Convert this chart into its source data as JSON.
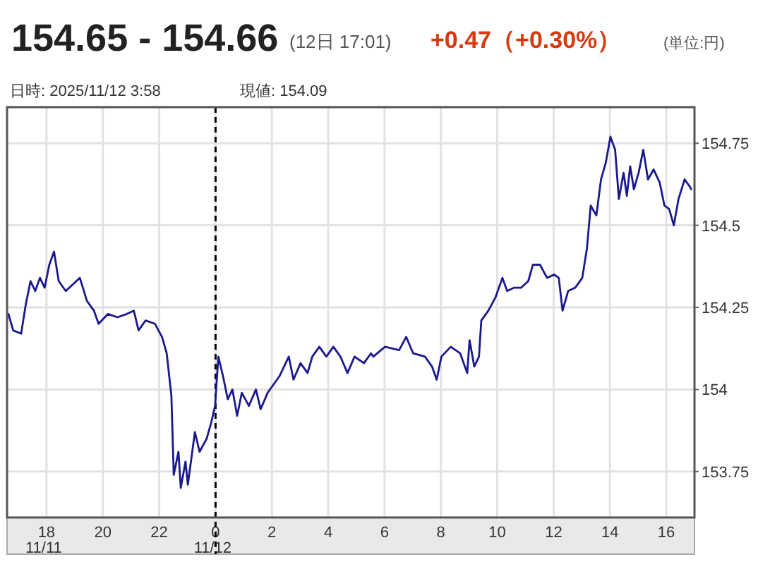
{
  "chart_data": {
    "type": "line",
    "title": "154.65 - 154.66",
    "subtitle": "(12日 17:01)",
    "annotations": [
      "+0.47（+0.30%）",
      "(単位:円)",
      "日時: 2025/11/12  3:58",
      "現値: 154.09"
    ],
    "x": [
      "2025-11-11T16:39",
      "2025-11-11T16:49",
      "2025-11-11T17:06",
      "2025-11-11T17:16",
      "2025-11-11T17:26",
      "2025-11-11T17:36",
      "2025-11-11T17:46",
      "2025-11-11T17:56",
      "2025-11-11T18:06",
      "2025-11-11T18:16",
      "2025-11-11T18:26",
      "2025-11-11T18:41",
      "2025-11-11T18:56",
      "2025-11-11T19:11",
      "2025-11-11T19:26",
      "2025-11-11T19:41",
      "2025-11-11T19:51",
      "2025-11-11T20:11",
      "2025-11-11T20:31",
      "2025-11-11T20:51",
      "2025-11-11T21:06",
      "2025-11-11T21:16",
      "2025-11-11T21:31",
      "2025-11-11T21:51",
      "2025-11-11T22:06",
      "2025-11-11T22:16",
      "2025-11-11T22:26",
      "2025-11-11T22:31",
      "2025-11-11T22:41",
      "2025-11-11T22:46",
      "2025-11-11T22:56",
      "2025-11-11T23:01",
      "2025-11-11T23:16",
      "2025-11-11T23:26",
      "2025-11-11T23:41",
      "2025-11-11T23:51",
      "2025-11-11T23:59",
      "2025-11-12T00:06",
      "2025-11-12T00:16",
      "2025-11-12T00:26",
      "2025-11-12T00:36",
      "2025-11-12T00:46",
      "2025-11-12T00:56",
      "2025-11-12T01:11",
      "2025-11-12T01:26",
      "2025-11-12T01:36",
      "2025-11-12T01:51",
      "2025-11-12T02:01",
      "2025-11-12T02:16",
      "2025-11-12T02:36",
      "2025-11-12T02:46",
      "2025-11-12T03:01",
      "2025-11-12T03:16",
      "2025-11-12T03:26",
      "2025-11-12T03:41",
      "2025-11-12T03:56",
      "2025-11-12T04:11",
      "2025-11-12T04:26",
      "2025-11-12T04:41",
      "2025-11-12T04:56",
      "2025-11-12T05:16",
      "2025-11-12T05:31",
      "2025-11-12T05:36",
      "2025-11-12T06:01",
      "2025-11-12T06:31",
      "2025-11-12T06:46",
      "2025-11-12T07:01",
      "2025-11-12T07:26",
      "2025-11-12T07:41",
      "2025-11-12T07:51",
      "2025-11-12T08:01",
      "2025-11-12T08:21",
      "2025-11-12T08:41",
      "2025-11-12T08:56",
      "2025-11-12T09:01",
      "2025-11-12T09:11",
      "2025-11-12T09:21",
      "2025-11-12T09:26",
      "2025-11-12T09:41",
      "2025-11-12T09:56",
      "2025-11-12T10:11",
      "2025-11-12T10:21",
      "2025-11-12T10:36",
      "2025-11-12T10:51",
      "2025-11-12T11:06",
      "2025-11-12T11:16",
      "2025-11-12T11:31",
      "2025-11-12T11:46",
      "2025-11-12T12:01",
      "2025-11-12T12:11",
      "2025-11-12T12:19",
      "2025-11-12T12:31",
      "2025-11-12T12:46",
      "2025-11-12T13:01",
      "2025-11-12T13:11",
      "2025-11-12T13:19",
      "2025-11-12T13:31",
      "2025-11-12T13:41",
      "2025-11-12T13:51",
      "2025-11-12T14:01",
      "2025-11-12T14:11",
      "2025-11-12T14:19",
      "2025-11-12T14:29",
      "2025-11-12T14:36",
      "2025-11-12T14:43",
      "2025-11-12T14:51",
      "2025-11-12T15:01",
      "2025-11-12T15:11",
      "2025-11-12T15:21",
      "2025-11-12T15:33",
      "2025-11-12T15:46",
      "2025-11-12T15:56",
      "2025-11-12T16:06",
      "2025-11-12T16:16",
      "2025-11-12T16:26",
      "2025-11-12T16:39",
      "2025-11-12T16:49",
      "2025-11-12T16:53"
    ],
    "series": [
      {
        "color": "#1a1a8c",
        "values": [
          154.23,
          154.18,
          154.17,
          154.26,
          154.33,
          154.3,
          154.34,
          154.31,
          154.38,
          154.42,
          154.33,
          154.3,
          154.32,
          154.34,
          154.27,
          154.24,
          154.2,
          154.23,
          154.22,
          154.23,
          154.24,
          154.18,
          154.21,
          154.2,
          154.16,
          154.11,
          153.98,
          153.74,
          153.81,
          153.7,
          153.78,
          153.71,
          153.87,
          153.81,
          153.85,
          153.9,
          153.95,
          154.1,
          154.04,
          153.97,
          154.0,
          153.92,
          153.99,
          153.95,
          154.0,
          153.94,
          153.99,
          154.01,
          154.04,
          154.1,
          154.03,
          154.08,
          154.05,
          154.1,
          154.13,
          154.1,
          154.13,
          154.1,
          154.05,
          154.1,
          154.08,
          154.11,
          154.1,
          154.13,
          154.12,
          154.16,
          154.11,
          154.1,
          154.07,
          154.03,
          154.1,
          154.13,
          154.11,
          154.05,
          154.15,
          154.07,
          154.1,
          154.21,
          154.24,
          154.28,
          154.34,
          154.3,
          154.31,
          154.31,
          154.33,
          154.38,
          154.38,
          154.34,
          154.35,
          154.34,
          154.24,
          154.3,
          154.31,
          154.34,
          154.43,
          154.56,
          154.53,
          154.64,
          154.69,
          154.77,
          154.73,
          154.58,
          154.66,
          154.59,
          154.68,
          154.61,
          154.66,
          154.73,
          154.64,
          154.67,
          154.63,
          154.56,
          154.55,
          154.5,
          154.58,
          154.64,
          154.62,
          154.61
        ]
      }
    ],
    "xlim": [
      "2025-11-11T16:36",
      "2025-11-12T17:00"
    ],
    "ylim": [
      153.61,
      154.86
    ],
    "xticks": [
      {
        "value": "2025-11-11T18:00",
        "label": "18\n11/11"
      },
      {
        "value": "2025-11-11T20:00",
        "label": "20"
      },
      {
        "value": "2025-11-11T22:00",
        "label": "22"
      },
      {
        "value": "2025-11-12T00:00",
        "label": "0\n11/12"
      },
      {
        "value": "2025-11-12T02:00",
        "label": "2"
      },
      {
        "value": "2025-11-12T04:00",
        "label": "4"
      },
      {
        "value": "2025-11-12T06:00",
        "label": "6"
      },
      {
        "value": "2025-11-12T08:00",
        "label": "8"
      },
      {
        "value": "2025-11-12T10:00",
        "label": "10"
      },
      {
        "value": "2025-11-12T12:00",
        "label": "12"
      },
      {
        "value": "2025-11-12T14:00",
        "label": "14"
      },
      {
        "value": "2025-11-12T16:00",
        "label": "16"
      }
    ],
    "yticks": [
      153.75,
      154,
      154.25,
      154.5,
      154.75
    ],
    "ref_lines": [
      {
        "axis": "x",
        "value": "2025-11-12T00:00",
        "color": "#000000",
        "line_style": "dashed"
      }
    ],
    "grid": true,
    "line_style": "solid"
  }
}
